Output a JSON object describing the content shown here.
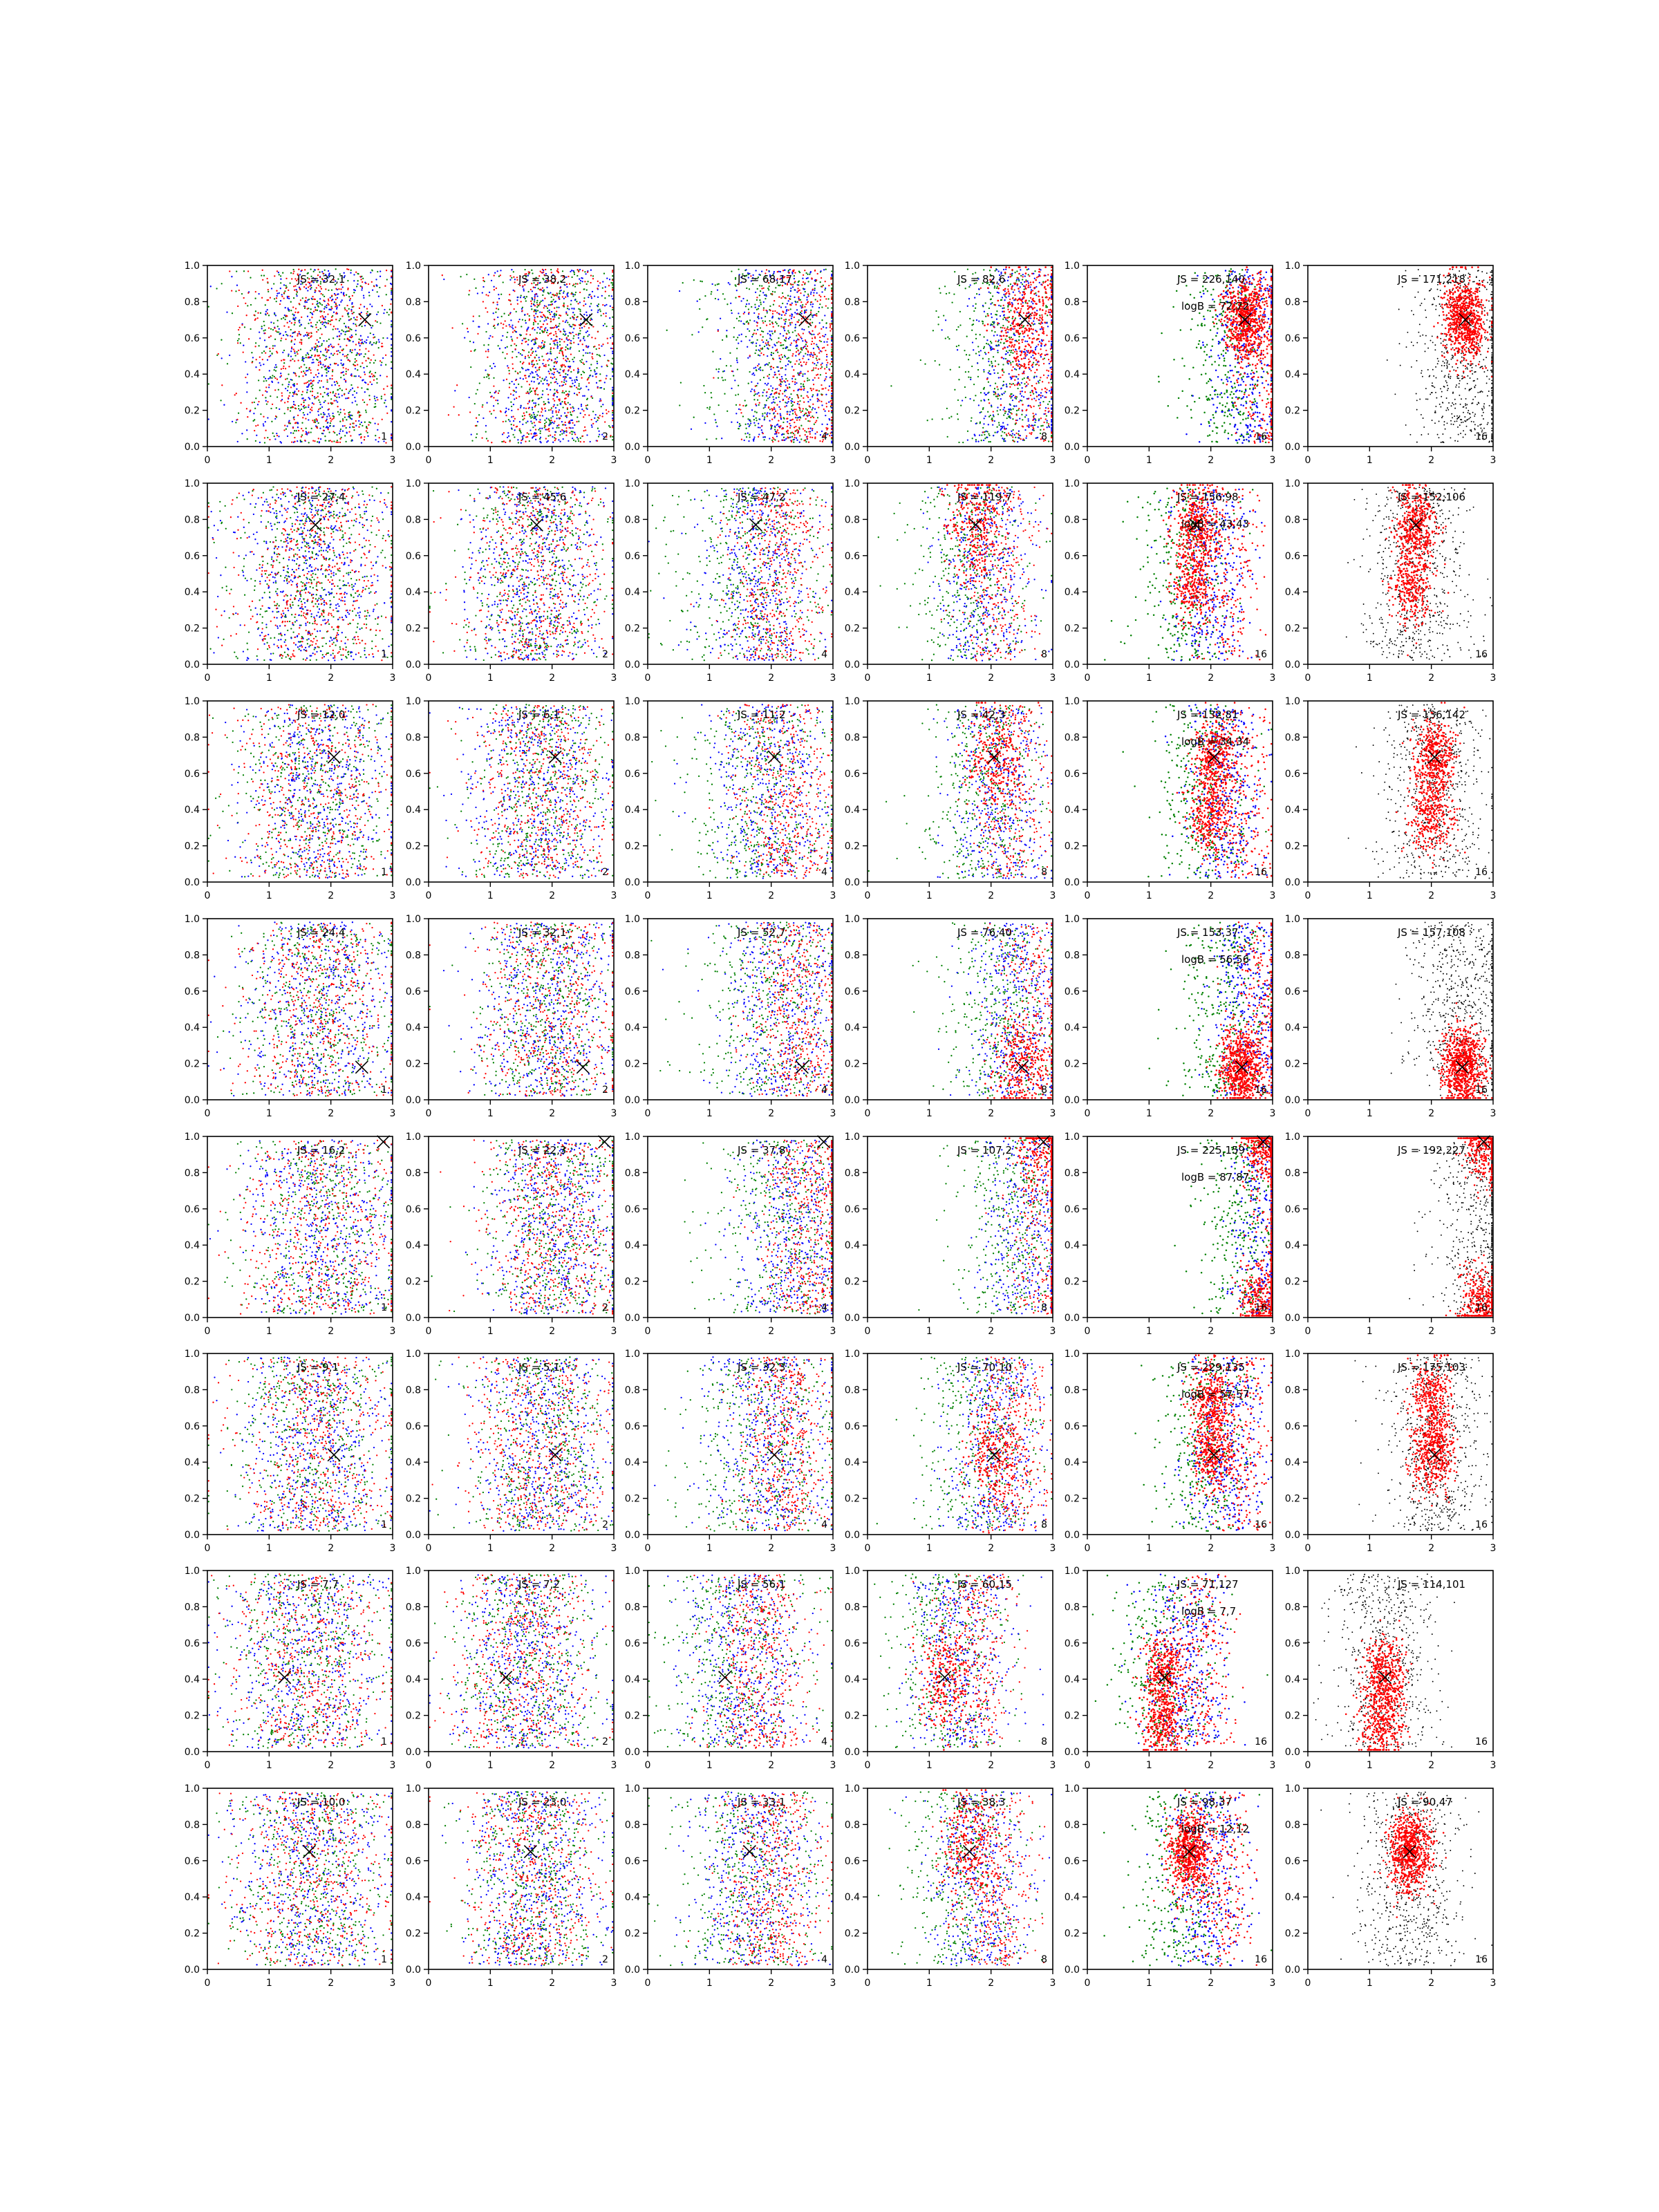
{
  "figure": {
    "grid_rows": 8,
    "grid_cols": 6,
    "colors": {
      "red": "#ff0000",
      "green": "#008000",
      "blue": "#0000ff",
      "black": "#000000",
      "axes": "#000000"
    }
  },
  "chart_data": {
    "type": "scatter",
    "xlim": [
      0,
      3
    ],
    "ylim": [
      0,
      1.0
    ],
    "xticks": [
      "0",
      "1",
      "2",
      "3"
    ],
    "yticks": [
      "0.0",
      "0.2",
      "0.4",
      "0.6",
      "0.8",
      "1.0"
    ],
    "grid": false,
    "legend": "none",
    "marker_symbol": "×",
    "panel_corner_labels": [
      "1",
      "2",
      "4",
      "8",
      "16",
      "16"
    ],
    "rows": [
      {
        "marker": [
          2.55,
          0.7
        ],
        "panels": [
          {
            "label": "JS = 32,1",
            "corner": "1"
          },
          {
            "label": "JS = 38,2",
            "corner": "2"
          },
          {
            "label": "JS = 68,17",
            "corner": "4"
          },
          {
            "label": "JS = 82,6",
            "corner": "8"
          },
          {
            "label": "JS = 226,140",
            "logB": "logB = 72,72",
            "corner": "16"
          },
          {
            "label": "JS = 171,218",
            "corner": "16"
          }
        ]
      },
      {
        "marker": [
          1.75,
          0.77
        ],
        "panels": [
          {
            "label": "JS = 27,4",
            "corner": "1"
          },
          {
            "label": "JS = 45,6",
            "corner": "2"
          },
          {
            "label": "JS = 47,2",
            "corner": "4"
          },
          {
            "label": "JS = 119,7",
            "corner": "8"
          },
          {
            "label": "JS = 156,98",
            "logB": "logB = 43,43",
            "corner": "16"
          },
          {
            "label": "JS = 152,106",
            "corner": "16"
          }
        ]
      },
      {
        "marker": [
          2.05,
          0.69
        ],
        "panels": [
          {
            "label": "JS = 12,0",
            "corner": "1"
          },
          {
            "label": "JS = 6,1",
            "corner": "2"
          },
          {
            "label": "JS = 11,2",
            "corner": "4"
          },
          {
            "label": "JS = 42,3",
            "corner": "8"
          },
          {
            "label": "JS = 132,81",
            "logB": "logB = 34,34",
            "corner": "16"
          },
          {
            "label": "JS = 136,142",
            "corner": "16"
          }
        ]
      },
      {
        "marker": [
          2.5,
          0.18
        ],
        "panels": [
          {
            "label": "JS = 24,4",
            "corner": "1"
          },
          {
            "label": "JS = 32,1",
            "corner": "2"
          },
          {
            "label": "JS = 52,7",
            "corner": "4"
          },
          {
            "label": "JS = 76,40",
            "corner": "8"
          },
          {
            "label": "JS = 153,37",
            "logB": "logB = 56,56",
            "corner": "16"
          },
          {
            "label": "JS = 157,108",
            "corner": "16"
          }
        ]
      },
      {
        "marker": [
          2.85,
          0.97
        ],
        "panels": [
          {
            "label": "JS = 16,2",
            "corner": "1"
          },
          {
            "label": "JS = 22,3",
            "corner": "2"
          },
          {
            "label": "JS = 37,8",
            "corner": "4"
          },
          {
            "label": "JS = 107,2",
            "corner": "8"
          },
          {
            "label": "JS = 225,159",
            "logB": "logB = 87,87",
            "corner": "16"
          },
          {
            "label": "JS = 192,227",
            "corner": "16"
          }
        ]
      },
      {
        "marker": [
          2.05,
          0.44
        ],
        "panels": [
          {
            "label": "JS = 9,1",
            "corner": "1"
          },
          {
            "label": "JS = 5,1",
            "corner": "2"
          },
          {
            "label": "JS = 32,3",
            "corner": "4"
          },
          {
            "label": "JS = 70,10",
            "corner": "8"
          },
          {
            "label": "JS = 229,135",
            "logB": "logB = 57,57",
            "corner": "16"
          },
          {
            "label": "JS = 175,103",
            "corner": "16"
          }
        ]
      },
      {
        "marker": [
          1.25,
          0.41
        ],
        "panels": [
          {
            "label": "JS = 7,7",
            "corner": "1"
          },
          {
            "label": "JS = 7,2",
            "corner": "2"
          },
          {
            "label": "JS = 56,1",
            "corner": "4"
          },
          {
            "label": "JS = 60,15",
            "corner": "8"
          },
          {
            "label": "JS = 71,127",
            "logB": "logB = 7,7",
            "corner": "16"
          },
          {
            "label": "JS = 114,101",
            "corner": "16"
          }
        ]
      },
      {
        "marker": [
          1.65,
          0.65
        ],
        "panels": [
          {
            "label": "JS = 10,0",
            "corner": "1"
          },
          {
            "label": "JS = 23,0",
            "corner": "2"
          },
          {
            "label": "JS = 33,1",
            "corner": "4"
          },
          {
            "label": "JS = 38,3",
            "corner": "8"
          },
          {
            "label": "JS = 98,37",
            "logB": "logB = 12,12",
            "corner": "16"
          },
          {
            "label": "JS = 90,47",
            "corner": "16"
          }
        ]
      }
    ]
  }
}
